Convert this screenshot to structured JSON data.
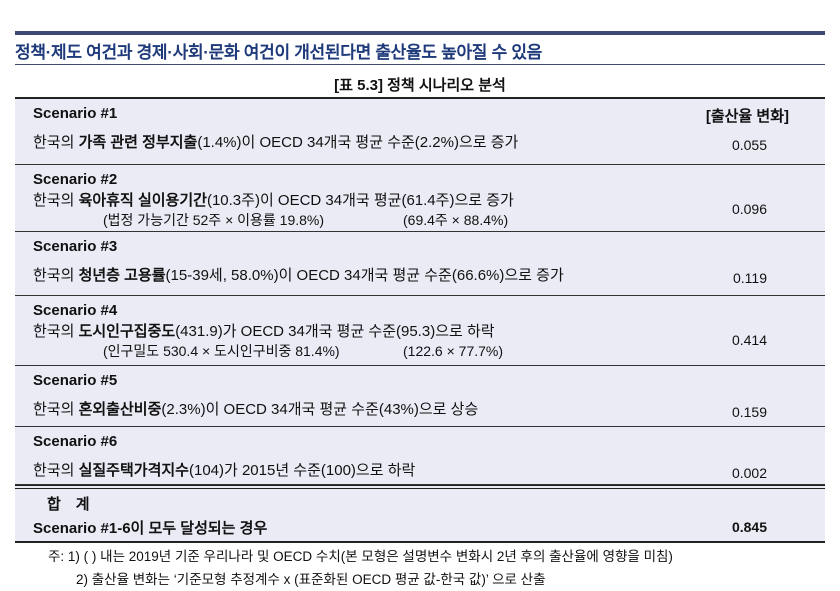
{
  "headline": "정책·제도 여건과 경제·사회·문화 여건이 개선된다면 출산율도 높아질 수 있음",
  "caption": "[표 5.3] 정책 시나리오 분석",
  "value_header": "[출산율 변화]",
  "scenarios": [
    {
      "title": "Scenario #1",
      "pre": "한국의 ",
      "bold": "가족 관련 정부지출",
      "post": "(1.4%)이 OECD 34개국 평균 수준(2.2%)으로 증가",
      "sub1": "",
      "sub2": "",
      "value": "0.055"
    },
    {
      "title": "Scenario #2",
      "pre": "한국의 ",
      "bold": "육아휴직 실이용기간",
      "post": "(10.3주)이 OECD 34개국 평균(61.4주)으로 증가",
      "sub1": "(법정 가능기간 52주 × 이용률 19.8%)",
      "sub2": "(69.4주 × 88.4%)",
      "value": "0.096"
    },
    {
      "title": "Scenario #3",
      "pre": "한국의 ",
      "bold": "청년층 고용률",
      "post": "(15-39세, 58.0%)이 OECD 34개국 평균 수준(66.6%)으로 증가",
      "sub1": "",
      "sub2": "",
      "value": "0.119"
    },
    {
      "title": "Scenario #4",
      "pre": "한국의 ",
      "bold": "도시인구집중도",
      "post": "(431.9)가 OECD 34개국 평균 수준(95.3)으로 하락",
      "sub1": "(인구밀도 530.4 × 도시인구비중 81.4%)",
      "sub2": "(122.6 × 77.7%)",
      "value": "0.414"
    },
    {
      "title": "Scenario #5",
      "pre": "한국의 ",
      "bold": "혼외출산비중",
      "post": "(2.3%)이 OECD 34개국 평균 수준(43%)으로 상승",
      "sub1": "",
      "sub2": "",
      "value": "0.159"
    },
    {
      "title": "Scenario #6",
      "pre": "한국의 ",
      "bold": "실질주택가격지수",
      "post": "(104)가 2015년 수준(100)으로 하락",
      "sub1": "",
      "sub2": "",
      "value": "0.002"
    }
  ],
  "total": {
    "title": "합　계",
    "label": "Scenario #1-6이 모두 달성되는 경우",
    "value": "0.845"
  },
  "notes": [
    "주: 1) (  ) 내는 2019년 기준 우리나라 및 OECD 수치(본 모형은 설명변수 변화시 2년 후의 출산율에 영향을 미침)",
    "2) 출산율 변화는 ‘기준모형 추정계수 x (표준화된 OECD 평균 값-한국 값)’ 으로 산출"
  ]
}
